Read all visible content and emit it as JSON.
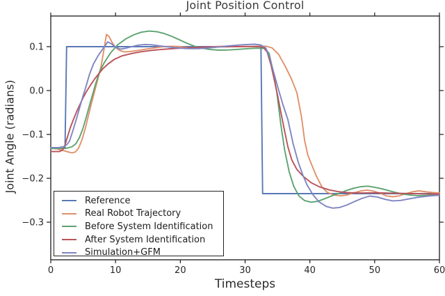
{
  "figure": {
    "background": "#ffffff"
  },
  "chart_data": {
    "type": "line",
    "title": "Joint Position Control",
    "xlabel": "Timesteps",
    "ylabel": "Joint Angle (radians)",
    "xlim": [
      0,
      60
    ],
    "ylim": [
      -0.386,
      0.17
    ],
    "x_ticks": [
      0,
      10,
      20,
      30,
      40,
      50,
      60
    ],
    "y_ticks": [
      0.1,
      0.0,
      -0.1,
      -0.2,
      -0.3
    ],
    "y_tick_labels": [
      "0.1",
      "0.0",
      "−0.1",
      "−0.2",
      "−0.3"
    ],
    "grid": false,
    "legend_position": "lower left",
    "axis_color": "#1a1a1a",
    "text_color": "#262626",
    "series": [
      {
        "name": "Reference",
        "color": "#5878b4",
        "points": [
          [
            0,
            -0.132
          ],
          [
            2.2,
            -0.132
          ],
          [
            2.45,
            0.1
          ],
          [
            32.45,
            0.1
          ],
          [
            32.7,
            -0.235
          ],
          [
            60,
            -0.235
          ]
        ]
      },
      {
        "name": "Real Robot Trajectory",
        "color": "#e0906a",
        "points": [
          [
            0,
            -0.131
          ],
          [
            1,
            -0.133
          ],
          [
            2,
            -0.137
          ],
          [
            2.7,
            -0.14
          ],
          [
            3.3,
            -0.142
          ],
          [
            3.8,
            -0.14
          ],
          [
            4.3,
            -0.131
          ],
          [
            4.8,
            -0.113
          ],
          [
            5.3,
            -0.088
          ],
          [
            5.8,
            -0.058
          ],
          [
            6.3,
            -0.028
          ],
          [
            6.8,
            0.0
          ],
          [
            7.3,
            0.028
          ],
          [
            7.8,
            0.058
          ],
          [
            8.2,
            0.092
          ],
          [
            8.6,
            0.128
          ],
          [
            9.0,
            0.123
          ],
          [
            9.5,
            0.109
          ],
          [
            10.0,
            0.098
          ],
          [
            10.7,
            0.091
          ],
          [
            11.4,
            0.088
          ],
          [
            12.3,
            0.089
          ],
          [
            13.3,
            0.091
          ],
          [
            14.5,
            0.094
          ],
          [
            16,
            0.097
          ],
          [
            17.3,
            0.1
          ],
          [
            18.6,
            0.101
          ],
          [
            20,
            0.1
          ],
          [
            21.2,
            0.098
          ],
          [
            22.5,
            0.097
          ],
          [
            23.8,
            0.098
          ],
          [
            25.2,
            0.1
          ],
          [
            26.5,
            0.101
          ],
          [
            28,
            0.1
          ],
          [
            29.5,
            0.1
          ],
          [
            31,
            0.1
          ],
          [
            32.3,
            0.101
          ],
          [
            33.3,
            0.101
          ],
          [
            34.2,
            0.097
          ],
          [
            35.2,
            0.082
          ],
          [
            36.2,
            0.055
          ],
          [
            37.2,
            0.025
          ],
          [
            38.0,
            -0.005
          ],
          [
            38.7,
            -0.06
          ],
          [
            39.2,
            -0.115
          ],
          [
            39.7,
            -0.148
          ],
          [
            40.3,
            -0.17
          ],
          [
            41.0,
            -0.195
          ],
          [
            41.9,
            -0.221
          ],
          [
            42.7,
            -0.232
          ],
          [
            43.7,
            -0.238
          ],
          [
            44.8,
            -0.24
          ],
          [
            45.8,
            -0.238
          ],
          [
            46.8,
            -0.233
          ],
          [
            47.8,
            -0.229
          ],
          [
            48.8,
            -0.227
          ],
          [
            49.8,
            -0.229
          ],
          [
            50.8,
            -0.234
          ],
          [
            51.8,
            -0.24
          ],
          [
            52.8,
            -0.242
          ],
          [
            53.8,
            -0.24
          ],
          [
            54.8,
            -0.235
          ],
          [
            55.8,
            -0.231
          ],
          [
            56.8,
            -0.2285
          ],
          [
            58,
            -0.231
          ],
          [
            59,
            -0.2325
          ],
          [
            60,
            -0.2335
          ]
        ]
      },
      {
        "name": "Before System Identification",
        "color": "#5da371",
        "points": [
          [
            0,
            -0.132
          ],
          [
            1.5,
            -0.132
          ],
          [
            2.6,
            -0.131
          ],
          [
            3.3,
            -0.128
          ],
          [
            3.9,
            -0.121
          ],
          [
            4.4,
            -0.108
          ],
          [
            4.9,
            -0.089
          ],
          [
            5.4,
            -0.065
          ],
          [
            5.9,
            -0.038
          ],
          [
            6.4,
            -0.012
          ],
          [
            6.9,
            0.014
          ],
          [
            7.5,
            0.041
          ],
          [
            8.2,
            0.062
          ],
          [
            9.2,
            0.085
          ],
          [
            10.3,
            0.104
          ],
          [
            11.6,
            0.118
          ],
          [
            12.8,
            0.127
          ],
          [
            14.0,
            0.133
          ],
          [
            15.2,
            0.1355
          ],
          [
            16.4,
            0.134
          ],
          [
            17.5,
            0.13
          ],
          [
            18.6,
            0.124
          ],
          [
            19.8,
            0.116
          ],
          [
            21,
            0.108
          ],
          [
            22.2,
            0.101
          ],
          [
            23.4,
            0.0965
          ],
          [
            24.6,
            0.0935
          ],
          [
            26,
            0.092
          ],
          [
            27.5,
            0.0925
          ],
          [
            29,
            0.094
          ],
          [
            30.5,
            0.0955
          ],
          [
            31.8,
            0.0965
          ],
          [
            33,
            0.096
          ],
          [
            33.7,
            0.085
          ],
          [
            34.3,
            0.045
          ],
          [
            34.9,
            -0.005
          ],
          [
            35.5,
            -0.075
          ],
          [
            36.1,
            -0.135
          ],
          [
            36.8,
            -0.185
          ],
          [
            37.5,
            -0.218
          ],
          [
            38.3,
            -0.24
          ],
          [
            39.2,
            -0.251
          ],
          [
            40.2,
            -0.2545
          ],
          [
            41.2,
            -0.2525
          ],
          [
            42.3,
            -0.2465
          ],
          [
            43.4,
            -0.24
          ],
          [
            44.6,
            -0.234
          ],
          [
            45.7,
            -0.2275
          ],
          [
            46.8,
            -0.2225
          ],
          [
            47.9,
            -0.219
          ],
          [
            49,
            -0.218
          ],
          [
            50,
            -0.2205
          ],
          [
            51,
            -0.2235
          ],
          [
            52,
            -0.2275
          ],
          [
            53,
            -0.2315
          ],
          [
            54.2,
            -0.2355
          ],
          [
            55.4,
            -0.238
          ],
          [
            56.6,
            -0.2395
          ],
          [
            58,
            -0.239
          ],
          [
            59,
            -0.238
          ],
          [
            60,
            -0.237
          ]
        ]
      },
      {
        "name": "After System Identification",
        "color": "#b8535a",
        "points": [
          [
            0,
            -0.139
          ],
          [
            1.3,
            -0.139
          ],
          [
            1.8,
            -0.136
          ],
          [
            2.2,
            -0.124
          ],
          [
            2.6,
            -0.105
          ],
          [
            3.0,
            -0.085
          ],
          [
            3.5,
            -0.066
          ],
          [
            4.0,
            -0.048
          ],
          [
            4.5,
            -0.032
          ],
          [
            5.0,
            -0.016
          ],
          [
            5.6,
            0.0
          ],
          [
            6.2,
            0.014
          ],
          [
            6.8,
            0.027
          ],
          [
            7.4,
            0.038
          ],
          [
            8.0,
            0.049
          ],
          [
            8.8,
            0.06
          ],
          [
            9.8,
            0.071
          ],
          [
            11,
            0.079
          ],
          [
            12.5,
            0.0845
          ],
          [
            14,
            0.0885
          ],
          [
            15.5,
            0.0915
          ],
          [
            17,
            0.0935
          ],
          [
            18.5,
            0.0952
          ],
          [
            20,
            0.0965
          ],
          [
            22,
            0.098
          ],
          [
            24,
            0.099
          ],
          [
            26,
            0.0995
          ],
          [
            28,
            0.1
          ],
          [
            30,
            0.1005
          ],
          [
            31.8,
            0.1005
          ],
          [
            32.8,
            0.0985
          ],
          [
            33.4,
            0.088
          ],
          [
            34.0,
            0.058
          ],
          [
            34.5,
            0.025
          ],
          [
            35.0,
            -0.01
          ],
          [
            35.5,
            -0.048
          ],
          [
            36.0,
            -0.085
          ],
          [
            36.6,
            -0.128
          ],
          [
            37.2,
            -0.158
          ],
          [
            38.0,
            -0.18
          ],
          [
            39.0,
            -0.196
          ],
          [
            40.2,
            -0.21
          ],
          [
            41.5,
            -0.2195
          ],
          [
            43,
            -0.2265
          ],
          [
            44.4,
            -0.2305
          ],
          [
            45.7,
            -0.2325
          ],
          [
            47,
            -0.2335
          ],
          [
            48.5,
            -0.2335
          ],
          [
            50,
            -0.233
          ],
          [
            51.5,
            -0.2335
          ],
          [
            53,
            -0.234
          ],
          [
            54.5,
            -0.2345
          ],
          [
            56,
            -0.235
          ],
          [
            58,
            -0.2355
          ],
          [
            60,
            -0.236
          ]
        ]
      },
      {
        "name": "Simulation+GFM",
        "color": "#7f85c2",
        "points": [
          [
            0,
            -0.13
          ],
          [
            1.2,
            -0.13
          ],
          [
            2.0,
            -0.128
          ],
          [
            2.5,
            -0.123
          ],
          [
            2.9,
            -0.115
          ],
          [
            3.4,
            -0.092
          ],
          [
            3.9,
            -0.068
          ],
          [
            4.4,
            -0.042
          ],
          [
            4.9,
            -0.016
          ],
          [
            5.5,
            0.012
          ],
          [
            6.0,
            0.038
          ],
          [
            6.6,
            0.061
          ],
          [
            7.3,
            0.079
          ],
          [
            8.0,
            0.094
          ],
          [
            8.8,
            0.111
          ],
          [
            9.4,
            0.106
          ],
          [
            10.0,
            0.099
          ],
          [
            10.7,
            0.0945
          ],
          [
            11.5,
            0.096
          ],
          [
            12.5,
            0.1
          ],
          [
            13.5,
            0.1035
          ],
          [
            14.5,
            0.105
          ],
          [
            15.5,
            0.1045
          ],
          [
            16.5,
            0.1025
          ],
          [
            17.5,
            0.1005
          ],
          [
            18.7,
            0.0985
          ],
          [
            20,
            0.0965
          ],
          [
            21.3,
            0.0955
          ],
          [
            22.8,
            0.0955
          ],
          [
            24.3,
            0.097
          ],
          [
            25.8,
            0.099
          ],
          [
            27.3,
            0.1015
          ],
          [
            28.8,
            0.1035
          ],
          [
            30.2,
            0.105
          ],
          [
            31.4,
            0.1055
          ],
          [
            32.4,
            0.104
          ],
          [
            33.2,
            0.097
          ],
          [
            33.8,
            0.075
          ],
          [
            34.4,
            0.042
          ],
          [
            35.1,
            0.005
          ],
          [
            35.8,
            -0.03
          ],
          [
            36.6,
            -0.066
          ],
          [
            37.4,
            -0.12
          ],
          [
            38.2,
            -0.163
          ],
          [
            38.9,
            -0.192
          ],
          [
            39.6,
            -0.216
          ],
          [
            40.5,
            -0.238
          ],
          [
            41.4,
            -0.2535
          ],
          [
            42.5,
            -0.264
          ],
          [
            43.5,
            -0.268
          ],
          [
            44.6,
            -0.2665
          ],
          [
            45.7,
            -0.261
          ],
          [
            46.8,
            -0.2535
          ],
          [
            48,
            -0.246
          ],
          [
            49.2,
            -0.2405
          ],
          [
            50.4,
            -0.2425
          ],
          [
            51.6,
            -0.248
          ],
          [
            52.8,
            -0.2515
          ],
          [
            54,
            -0.2505
          ],
          [
            55.3,
            -0.247
          ],
          [
            56.6,
            -0.2435
          ],
          [
            58,
            -0.241
          ],
          [
            59,
            -0.2395
          ],
          [
            60,
            -0.2385
          ]
        ]
      }
    ]
  }
}
